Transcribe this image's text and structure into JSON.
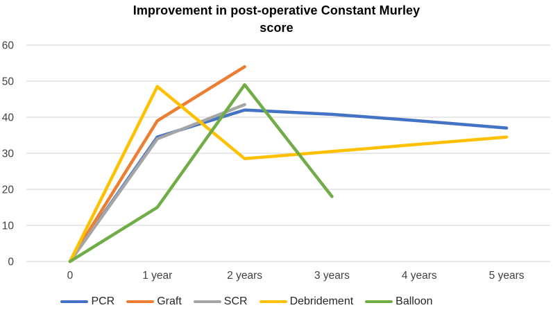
{
  "chart_data": {
    "type": "line",
    "title": "Improvement in post-operative Constant Murley score",
    "title_display": "Improvement in post-operative Constant Murley\nscore",
    "categories": [
      "0",
      "1 year",
      "2 years",
      "3 years",
      "4 years",
      "5 years"
    ],
    "series": [
      {
        "name": "PCR",
        "color": "#4472C4",
        "values": [
          0,
          34.5,
          42,
          40.8,
          39,
          37
        ]
      },
      {
        "name": "Graft",
        "color": "#ED7D31",
        "values": [
          0,
          39,
          54,
          null,
          null,
          null
        ]
      },
      {
        "name": "SCR",
        "color": "#A5A5A5",
        "values": [
          0,
          34,
          43.5,
          null,
          null,
          null
        ]
      },
      {
        "name": "Debridement",
        "color": "#FFC000",
        "values": [
          0,
          48.5,
          28.5,
          30.5,
          32.5,
          34.5
        ]
      },
      {
        "name": "Balloon",
        "color": "#70AD47",
        "values": [
          0,
          15,
          49,
          18,
          null,
          null
        ]
      }
    ],
    "y_axis": {
      "min": 0,
      "max": 60,
      "step": 10,
      "ticks": [
        0,
        10,
        20,
        30,
        40,
        50,
        60
      ]
    },
    "x_axis_label": "",
    "y_axis_label": "",
    "grid": true,
    "legend_position": "bottom",
    "colors": {
      "gridline": "#D9D9D9",
      "axis_text": "#404040",
      "title_text": "#000000",
      "background": "#FFFFFF"
    }
  }
}
